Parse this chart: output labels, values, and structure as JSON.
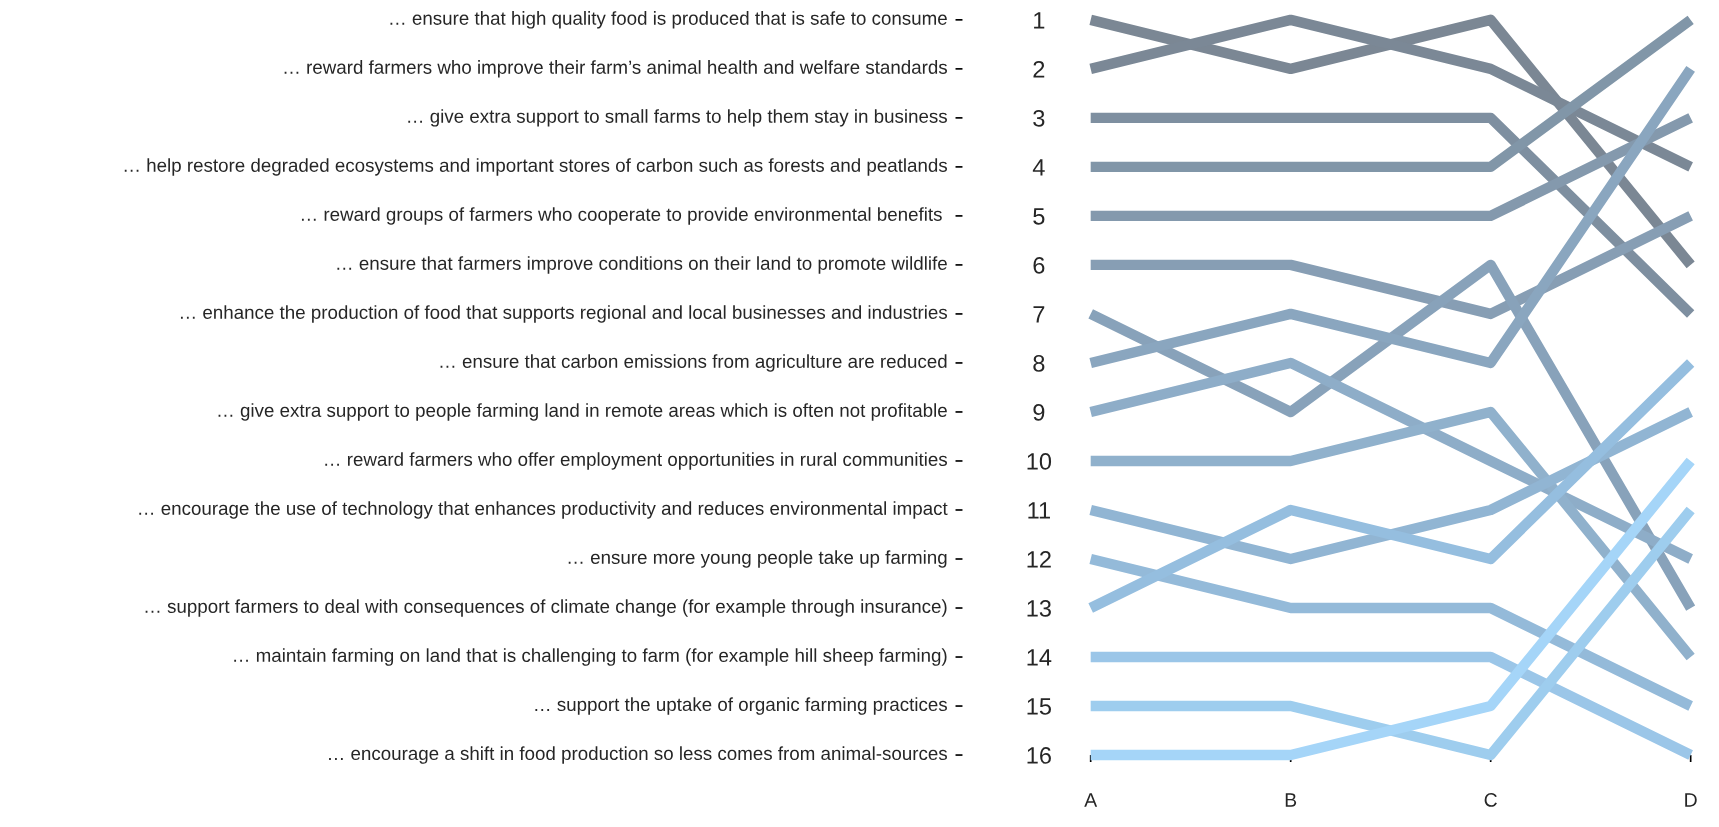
{
  "chart_data": {
    "type": "line",
    "categories": [
      "A",
      "B",
      "C",
      "D"
    ],
    "ylim": [
      16,
      1
    ],
    "yticks": [
      1,
      2,
      3,
      4,
      5,
      6,
      7,
      8,
      9,
      10,
      11,
      12,
      13,
      14,
      15,
      16
    ],
    "grid": false,
    "line_style": "solid",
    "marker": "none",
    "annotations": [
      "… ensure that high quality food is produced that is safe to consume",
      "… reward farmers who improve their farm’s animal health and welfare standards",
      "… give extra support to small farms to help them stay in business",
      "… help restore degraded ecosystems and important stores of carbon such as forests and peatlands",
      "… reward groups of farmers who cooperate to provide environmental benefits ",
      "… ensure that farmers improve conditions on their land to promote wildlife",
      "… enhance the production of food that supports regional and local businesses and industries",
      "… ensure that carbon emissions from agriculture are reduced",
      "… give extra support to people farming land in remote areas which is often not profitable",
      "… reward farmers who offer employment opportunities in rural communities",
      "… encourage the use of technology that enhances productivity and reduces environmental impact",
      "… ensure more young people take up farming",
      "… support farmers to deal with consequences of climate change (for example through insurance)",
      "… maintain farming on land that is challenging to farm (for example hill sheep farming)",
      "… support the uptake of organic farming practices",
      "… encourage a shift in food production so less comes from animal-sources"
    ],
    "series": [
      {
        "color": "#7b8794",
        "values": [
          1,
          2,
          1,
          6
        ]
      },
      {
        "color": "#7b8896",
        "values": [
          2,
          1,
          2,
          4
        ]
      },
      {
        "color": "#7e8fa0",
        "values": [
          3,
          3,
          3,
          7
        ]
      },
      {
        "color": "#8196a8",
        "values": [
          4,
          4,
          4,
          1
        ]
      },
      {
        "color": "#8499ad",
        "values": [
          5,
          5,
          5,
          3
        ]
      },
      {
        "color": "#879eb4",
        "values": [
          6,
          6,
          7,
          5
        ]
      },
      {
        "color": "#88a2ba",
        "values": [
          7,
          9,
          6,
          13
        ]
      },
      {
        "color": "#8aa6bf",
        "values": [
          8,
          7,
          8,
          2
        ]
      },
      {
        "color": "#8eadc8",
        "values": [
          9,
          8,
          10,
          12
        ]
      },
      {
        "color": "#90b1cc",
        "values": [
          10,
          10,
          9,
          14
        ]
      },
      {
        "color": "#91b5d3",
        "values": [
          11,
          12,
          11,
          9
        ]
      },
      {
        "color": "#94bad9",
        "values": [
          12,
          13,
          13,
          15
        ]
      },
      {
        "color": "#95bedf",
        "values": [
          13,
          11,
          12,
          8
        ]
      },
      {
        "color": "#9bc6e8",
        "values": [
          14,
          14,
          14,
          16
        ]
      },
      {
        "color": "#9ecdee",
        "values": [
          15,
          15,
          16,
          11
        ]
      },
      {
        "color": "#a5d5f8",
        "values": [
          16,
          16,
          15,
          10
        ]
      }
    ]
  }
}
